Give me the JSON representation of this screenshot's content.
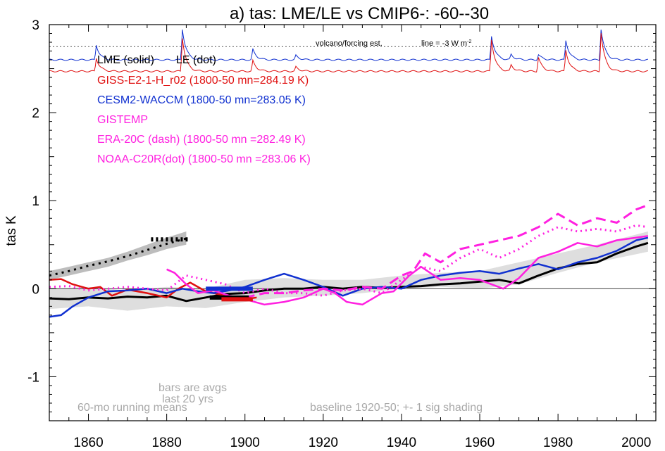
{
  "chart_data": {
    "type": "line",
    "title": "a) tas: LME/LE vs CMIP6-: -60--30",
    "ylabel": "tas K",
    "xlim": [
      1850,
      2005
    ],
    "ylim": [
      -1.5,
      3.0
    ],
    "x_ticks": [
      1860,
      1880,
      1900,
      1920,
      1940,
      1960,
      1980,
      2000
    ],
    "y_ticks": [
      3,
      2,
      1,
      0,
      -1
    ],
    "y_tick_labels": [
      "3",
      "2",
      "1",
      "0",
      "-1"
    ],
    "legend": {
      "position": "top-left",
      "entries": [
        {
          "label": "LME (solid)",
          "color": "#000000"
        },
        {
          "label": "LE (dot)",
          "color": "#000000"
        },
        {
          "label": "GISS-E2-1-H_r02 (1800-50 mn=284.19 K)",
          "color": "#e01010"
        },
        {
          "label": "CESM2-WACCM (1800-50 mn=283.05 K)",
          "color": "#1030d0"
        },
        {
          "label": "GISTEMP",
          "color": "#ff20e0"
        },
        {
          "label": "ERA-20C (dash) (1800-50 mn =282.49 K)",
          "color": "#ff20e0"
        },
        {
          "label": "NOAA-C20R(dot) (1800-50 mn =283.06 K)",
          "color": "#ff20e0"
        }
      ]
    },
    "annotations": {
      "volcano_label": "volcano/forcing est.",
      "line_label": "line = -3 W m",
      "line_label_sup": "-2",
      "bars_note_1": "bars are avgs",
      "bars_note_2": "last 20 yrs",
      "running_mean_note": "60-mo running means",
      "baseline_note": "baseline 1920-50; +- 1 sig shading"
    },
    "forcing_reference_y": 2.75,
    "forcing_traces": [
      {
        "name": "volcano/forcing est.",
        "color": "#1030d0",
        "base": 2.6,
        "peaks": [
          [
            1862,
            0.17
          ],
          [
            1884,
            0.35
          ],
          [
            1902,
            0.12
          ],
          [
            1913,
            0.05
          ],
          [
            1963,
            0.27
          ],
          [
            1968,
            0.06
          ],
          [
            1975,
            0.06
          ],
          [
            1982,
            0.22
          ],
          [
            1991,
            0.35
          ]
        ]
      },
      {
        "color": "#e01010",
        "base": 2.47,
        "peaks": [
          [
            1862,
            0.15
          ],
          [
            1884,
            0.38
          ],
          [
            1902,
            0.12
          ],
          [
            1913,
            0.05
          ],
          [
            1963,
            0.36
          ],
          [
            1968,
            0.07
          ],
          [
            1975,
            0.16
          ],
          [
            1982,
            0.24
          ],
          [
            1991,
            0.44
          ]
        ]
      }
    ],
    "shading": [
      {
        "name": "LE spread",
        "color": "#dedede",
        "x": [
          1850,
          1860,
          1870,
          1880,
          1890,
          1900,
          1910,
          1920,
          1930,
          1940,
          1950,
          1960,
          1970,
          1980,
          1990,
          2003
        ],
        "lower": [
          -0.23,
          -0.2,
          -0.25,
          -0.2,
          -0.22,
          -0.15,
          -0.1,
          -0.08,
          -0.05,
          0.0,
          0.02,
          0.0,
          0.05,
          0.18,
          0.3,
          0.42
        ],
        "upper": [
          0.0,
          0.02,
          -0.02,
          0.02,
          0.0,
          0.1,
          0.12,
          0.1,
          0.1,
          0.15,
          0.18,
          0.2,
          0.3,
          0.4,
          0.5,
          0.65
        ]
      },
      {
        "name": "shifted LE band",
        "color": "#bdbdbd",
        "x": [
          1850,
          1855,
          1860,
          1865,
          1870,
          1875,
          1880,
          1885
        ],
        "lower": [
          0.1,
          0.15,
          0.2,
          0.25,
          0.32,
          0.38,
          0.45,
          0.5
        ],
        "upper": [
          0.2,
          0.25,
          0.3,
          0.35,
          0.42,
          0.5,
          0.58,
          0.65
        ]
      }
    ],
    "series": [
      {
        "name": "LME (solid)",
        "color": "#000000",
        "width": 3,
        "dash": "",
        "x": [
          1850,
          1855,
          1860,
          1865,
          1870,
          1875,
          1880,
          1885,
          1890,
          1895,
          1900,
          1905,
          1910,
          1915,
          1920,
          1925,
          1930,
          1935,
          1940,
          1945,
          1950,
          1955,
          1960,
          1965,
          1970,
          1975,
          1980,
          1985,
          1990,
          1995,
          2000,
          2003
        ],
        "y": [
          -0.11,
          -0.12,
          -0.1,
          -0.11,
          -0.09,
          -0.1,
          -0.08,
          -0.14,
          -0.1,
          -0.06,
          -0.05,
          -0.02,
          0.0,
          0.0,
          0.02,
          0.0,
          0.02,
          0.01,
          0.02,
          0.03,
          0.05,
          0.06,
          0.08,
          0.1,
          0.06,
          0.15,
          0.23,
          0.28,
          0.3,
          0.4,
          0.48,
          0.52
        ]
      },
      {
        "name": "LE (dot)",
        "color": "#000000",
        "width": 3,
        "dash": "3,6",
        "x": [
          1850,
          1855,
          1860,
          1865,
          1870,
          1875,
          1880,
          1885
        ],
        "y": [
          0.15,
          0.2,
          0.26,
          0.31,
          0.37,
          0.44,
          0.51,
          0.57
        ]
      },
      {
        "name": "GISS-E2-1-H_r02",
        "color": "#e01010",
        "width": 2.5,
        "dash": "",
        "x": [
          1850,
          1853,
          1856,
          1860,
          1863,
          1866,
          1870,
          1875,
          1880,
          1883,
          1886,
          1890,
          1893,
          1896,
          1900,
          1903
        ],
        "y": [
          0.1,
          0.11,
          0.05,
          0.0,
          0.02,
          -0.08,
          -0.01,
          -0.05,
          -0.1,
          0.0,
          0.07,
          -0.03,
          -0.06,
          -0.08,
          -0.12,
          -0.1
        ]
      },
      {
        "name": "CESM2-WACCM",
        "color": "#1030d0",
        "width": 2.5,
        "dash": "",
        "x": [
          1850,
          1853,
          1856,
          1860,
          1865,
          1870,
          1875,
          1880,
          1884,
          1888,
          1892,
          1896,
          1900,
          1905,
          1910,
          1915,
          1920,
          1925,
          1930,
          1935,
          1940,
          1945,
          1950,
          1955,
          1960,
          1965,
          1970,
          1975,
          1980,
          1985,
          1990,
          1995,
          2000,
          2003
        ],
        "y": [
          -0.32,
          -0.3,
          -0.2,
          -0.1,
          -0.03,
          -0.02,
          0.0,
          -0.05,
          0.0,
          -0.03,
          -0.05,
          -0.02,
          0.02,
          0.1,
          0.17,
          0.1,
          0.02,
          -0.08,
          0.0,
          0.02,
          0.0,
          0.1,
          0.15,
          0.18,
          0.2,
          0.17,
          0.23,
          0.28,
          0.22,
          0.3,
          0.35,
          0.43,
          0.55,
          0.58
        ]
      },
      {
        "name": "GISTEMP",
        "color": "#ff20e0",
        "width": 2.5,
        "dash": "",
        "x": [
          1880,
          1882,
          1885,
          1888,
          1892,
          1896,
          1900,
          1905,
          1910,
          1915,
          1920,
          1923,
          1926,
          1930,
          1935,
          1938,
          1942,
          1945,
          1950,
          1955,
          1960,
          1963,
          1966,
          1970,
          1975,
          1980,
          1985,
          1990,
          1995,
          2000,
          2003
        ],
        "y": [
          0.22,
          0.18,
          0.05,
          -0.05,
          -0.02,
          -0.08,
          -0.12,
          -0.18,
          -0.15,
          -0.1,
          0.0,
          -0.05,
          -0.15,
          -0.18,
          -0.05,
          -0.03,
          0.15,
          0.25,
          0.1,
          0.12,
          0.1,
          0.05,
          0.0,
          0.12,
          0.35,
          0.42,
          0.52,
          0.48,
          0.55,
          0.58,
          0.6
        ]
      },
      {
        "name": "ERA-20C (dash)",
        "color": "#ff20e0",
        "width": 3,
        "dash": "14,7",
        "x": [
          1900,
          1905,
          1910,
          1915,
          1920,
          1925,
          1930,
          1935,
          1940,
          1943,
          1946,
          1950,
          1955,
          1960,
          1965,
          1970,
          1975,
          1980,
          1985,
          1990,
          1995,
          2000,
          2003
        ],
        "y": [
          -0.1,
          -0.05,
          -0.05,
          -0.02,
          0.0,
          -0.02,
          0.02,
          0.0,
          0.15,
          0.2,
          0.4,
          0.3,
          0.45,
          0.5,
          0.55,
          0.6,
          0.7,
          0.85,
          0.72,
          0.8,
          0.75,
          0.9,
          0.95
        ]
      },
      {
        "name": "NOAA-C20R(dot)",
        "color": "#ff20e0",
        "width": 3,
        "dash": "2,5",
        "x": [
          1850,
          1855,
          1860,
          1865,
          1870,
          1875,
          1880,
          1885,
          1890,
          1895,
          1900,
          1905,
          1910,
          1915,
          1920,
          1925,
          1930,
          1935,
          1940,
          1945,
          1950,
          1955,
          1960,
          1965,
          1970,
          1975,
          1980,
          1985,
          1990,
          1995,
          2000,
          2003
        ],
        "y": [
          0.02,
          0.03,
          -0.02,
          0.0,
          0.02,
          0.0,
          -0.02,
          0.15,
          0.1,
          0.05,
          -0.05,
          0.0,
          -0.05,
          -0.05,
          -0.08,
          -0.02,
          0.0,
          -0.05,
          0.1,
          0.25,
          0.2,
          0.35,
          0.45,
          0.35,
          0.45,
          0.6,
          0.7,
          0.65,
          0.68,
          0.65,
          0.72,
          0.7
        ]
      }
    ],
    "bars": [
      {
        "name": "LE (dot) avg",
        "color": "#000000",
        "dash": "3,4",
        "x": [
          1876,
          1886
        ],
        "y": 0.56
      },
      {
        "name": "LME (solid) avg",
        "color": "#000000",
        "dash": "",
        "x": [
          1891,
          1901
        ],
        "y": -0.1
      },
      {
        "name": "CESM2-WACCM avg",
        "color": "#1030d0",
        "dash": "",
        "x": [
          1890,
          1902
        ],
        "y": 0.0
      },
      {
        "name": "GISS-E2-1-H_r02 avg",
        "color": "#e01010",
        "dash": "",
        "x": [
          1894,
          1902
        ],
        "y": -0.12
      }
    ]
  }
}
